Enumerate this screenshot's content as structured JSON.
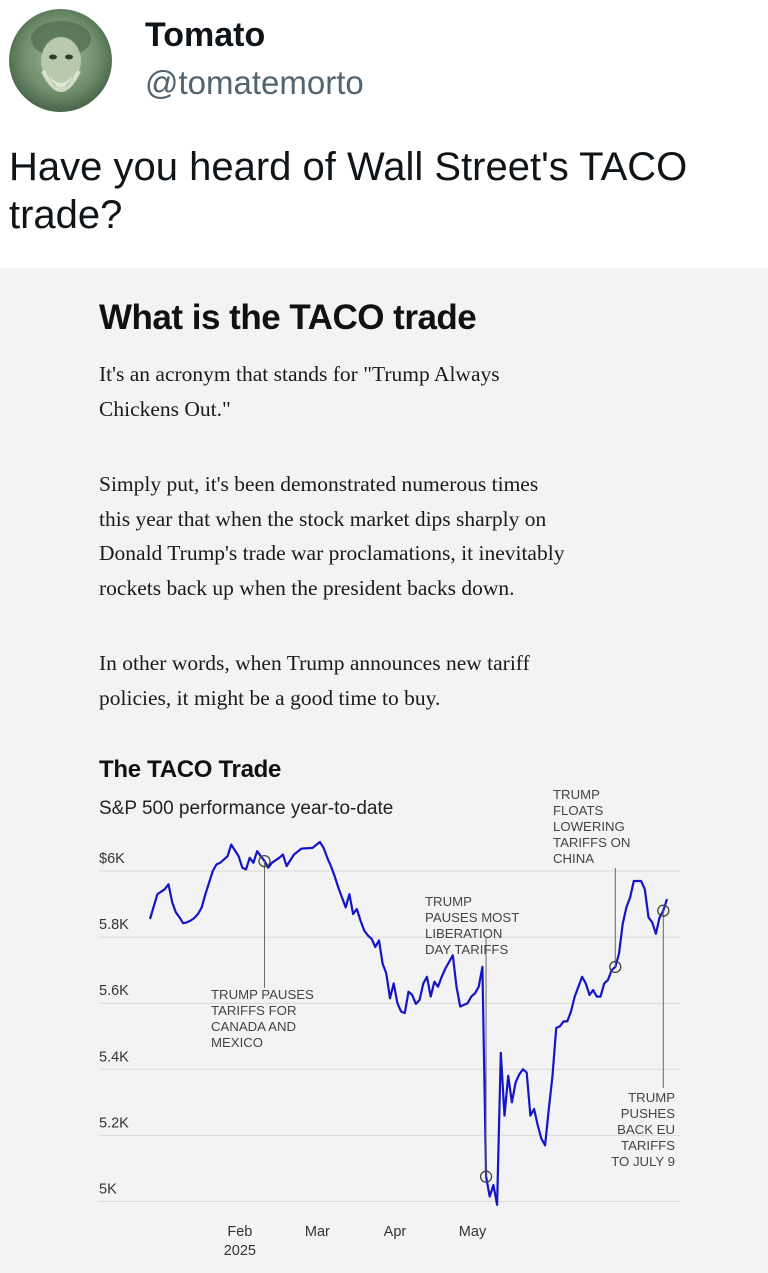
{
  "tweet": {
    "display_name": "Tomato",
    "handle": "@tomatemorto",
    "text_line1": "Have you heard of Wall Street's TACO",
    "text_line2": "trade?"
  },
  "article": {
    "title": "What is the TACO trade",
    "p1": [
      "It's an acronym that stands for \"Trump Always",
      "Chickens Out.\""
    ],
    "p2": [
      "Simply put, it's been demonstrated numerous times",
      "this year that when the stock market dips sharply on",
      "Donald Trump's trade war proclamations, it inevitably",
      "rockets back up when the president backs down."
    ],
    "p3": [
      "In other words, when Trump announces new tariff",
      "policies, it might be a good time to buy."
    ]
  },
  "colors": {
    "line": "#1515c8",
    "grid": "#d8d8d8",
    "background": "#f3f3f3",
    "handle": "#536471"
  },
  "chart_data": {
    "type": "line",
    "title": "The TACO Trade",
    "subtitle": "S&P 500 performance year-to-date",
    "y_ticks": [
      "$6K",
      "5.8K",
      "5.6K",
      "5.4K",
      "5.2K",
      "5K"
    ],
    "y_tick_values": [
      6000,
      5800,
      5600,
      5400,
      5200,
      5000
    ],
    "x_ticks": [
      "Feb",
      "Mar",
      "Apr",
      "May"
    ],
    "x_sublabel": "2025",
    "ylim": [
      4950,
      6100
    ],
    "grid": true,
    "series": [
      {
        "points": [
          [
            0,
            5855
          ],
          [
            2,
            5930
          ],
          [
            4,
            5945
          ],
          [
            5,
            5960
          ],
          [
            6,
            5905
          ],
          [
            7,
            5875
          ],
          [
            8,
            5860
          ],
          [
            9,
            5842
          ],
          [
            10,
            5845
          ],
          [
            11,
            5850
          ],
          [
            12,
            5858
          ],
          [
            13,
            5870
          ],
          [
            14,
            5890
          ],
          [
            15,
            5930
          ],
          [
            17,
            6000
          ],
          [
            18,
            6020
          ],
          [
            19,
            6025
          ],
          [
            21,
            6045
          ],
          [
            22,
            6080
          ],
          [
            24,
            6045
          ],
          [
            25,
            6010
          ],
          [
            26,
            6005
          ],
          [
            27,
            6040
          ],
          [
            28,
            6025
          ],
          [
            29,
            6060
          ],
          [
            30,
            6045
          ],
          [
            31,
            6030
          ],
          [
            32,
            6010
          ],
          [
            33,
            6025
          ],
          [
            35,
            6040
          ],
          [
            36,
            6050
          ],
          [
            37,
            6015
          ],
          [
            39,
            6050
          ],
          [
            41,
            6068
          ],
          [
            44,
            6070
          ],
          [
            46,
            6088
          ],
          [
            47,
            6070
          ],
          [
            48,
            6040
          ],
          [
            49,
            6015
          ],
          [
            50,
            5985
          ],
          [
            51,
            5950
          ],
          [
            52,
            5920
          ],
          [
            53,
            5890
          ],
          [
            54,
            5930
          ],
          [
            55,
            5870
          ],
          [
            56,
            5885
          ],
          [
            57,
            5850
          ],
          [
            58,
            5820
          ],
          [
            59,
            5805
          ],
          [
            60,
            5795
          ],
          [
            61,
            5770
          ],
          [
            62,
            5790
          ],
          [
            63,
            5720
          ],
          [
            64,
            5690
          ],
          [
            65,
            5615
          ],
          [
            66,
            5660
          ],
          [
            67,
            5600
          ],
          [
            68,
            5575
          ],
          [
            69,
            5570
          ],
          [
            70,
            5635
          ],
          [
            71,
            5625
          ],
          [
            72,
            5598
          ],
          [
            73,
            5610
          ],
          [
            74,
            5660
          ],
          [
            75,
            5680
          ],
          [
            76,
            5620
          ],
          [
            77,
            5665
          ],
          [
            78,
            5650
          ],
          [
            79,
            5680
          ],
          [
            80,
            5705
          ],
          [
            82,
            5745
          ],
          [
            83,
            5650
          ],
          [
            84,
            5590
          ],
          [
            86,
            5600
          ],
          [
            87,
            5620
          ],
          [
            88,
            5630
          ],
          [
            89,
            5650
          ],
          [
            90,
            5710
          ],
          [
            91,
            5075
          ],
          [
            92,
            5015
          ],
          [
            93,
            5050
          ],
          [
            94,
            4990
          ],
          [
            95,
            5450
          ],
          [
            96,
            5260
          ],
          [
            97,
            5380
          ],
          [
            98,
            5300
          ],
          [
            99,
            5360
          ],
          [
            100,
            5385
          ],
          [
            101,
            5400
          ],
          [
            102,
            5390
          ],
          [
            103,
            5260
          ],
          [
            104,
            5280
          ],
          [
            105,
            5230
          ],
          [
            106,
            5190
          ],
          [
            107,
            5170
          ],
          [
            108,
            5280
          ],
          [
            109,
            5380
          ],
          [
            110,
            5525
          ],
          [
            111,
            5530
          ],
          [
            112,
            5545
          ],
          [
            113,
            5545
          ],
          [
            114,
            5575
          ],
          [
            115,
            5620
          ],
          [
            116,
            5650
          ],
          [
            117,
            5680
          ],
          [
            118,
            5660
          ],
          [
            119,
            5625
          ],
          [
            120,
            5640
          ],
          [
            121,
            5620
          ],
          [
            122,
            5620
          ],
          [
            123,
            5660
          ],
          [
            124,
            5670
          ],
          [
            125,
            5700
          ],
          [
            126,
            5710
          ],
          [
            127,
            5750
          ],
          [
            128,
            5840
          ],
          [
            129,
            5890
          ],
          [
            130,
            5920
          ],
          [
            131,
            5970
          ],
          [
            133,
            5970
          ],
          [
            134,
            5945
          ],
          [
            135,
            5860
          ],
          [
            136,
            5845
          ],
          [
            137,
            5810
          ],
          [
            138,
            5860
          ],
          [
            139,
            5880
          ],
          [
            140,
            5915
          ]
        ]
      }
    ],
    "annotations": [
      {
        "lines": [
          "TRUMP PAUSES",
          "TARIFFS FOR",
          "CANADA AND",
          "MEXICO"
        ]
      },
      {
        "lines": [
          "TRUMP",
          "PAUSES MOST",
          "LIBERATION",
          "DAY TARIFFS"
        ]
      },
      {
        "lines": [
          "TRUMP",
          "FLOATS",
          "LOWERING",
          "TARIFFS ON",
          "CHINA"
        ]
      },
      {
        "lines": [
          "TRUMP",
          "PUSHES",
          "BACK EU",
          "TARIFFS",
          "TO JULY 9"
        ]
      }
    ]
  }
}
